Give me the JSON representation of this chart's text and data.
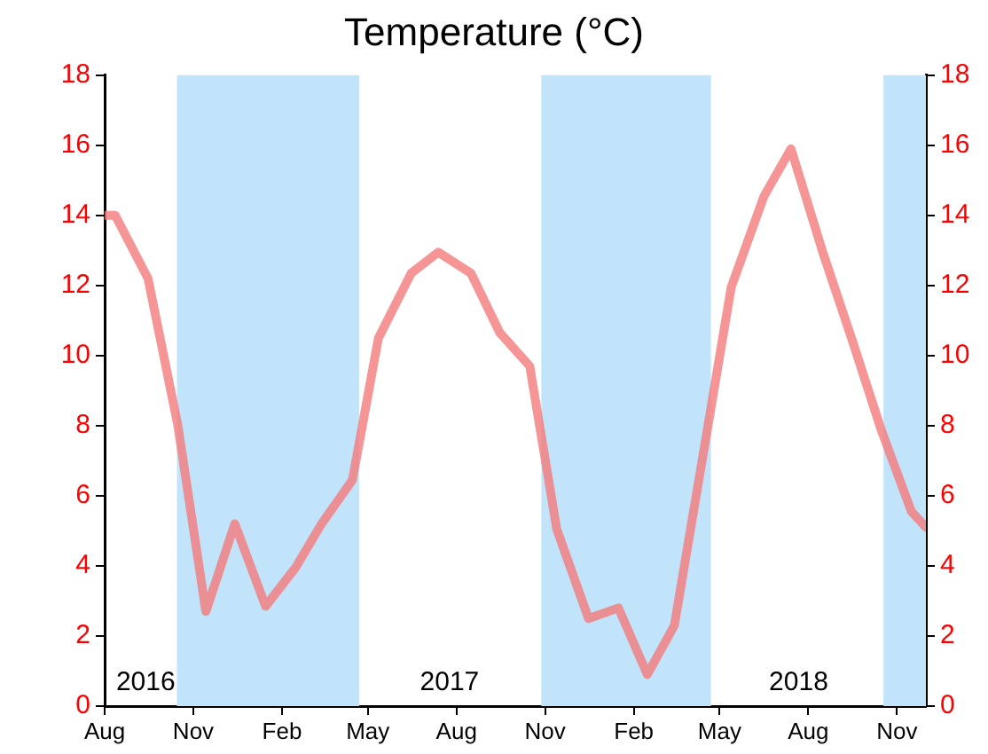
{
  "chart_data": {
    "type": "line",
    "title": "Temperature (°C)",
    "x": [
      "2016-08-01",
      "2016-08-12",
      "2016-09-15",
      "2016-10-16",
      "2016-11-14",
      "2016-12-14",
      "2017-01-15",
      "2017-02-15",
      "2017-03-14",
      "2017-04-15",
      "2017-05-12",
      "2017-06-15",
      "2017-07-13",
      "2017-08-16",
      "2017-09-15",
      "2017-10-16",
      "2017-11-13",
      "2017-12-16",
      "2018-01-16",
      "2018-02-15",
      "2018-03-15",
      "2018-04-14",
      "2018-05-13",
      "2018-06-16",
      "2018-07-14",
      "2018-08-16",
      "2018-09-16",
      "2018-10-16",
      "2018-11-16",
      "2018-12-01"
    ],
    "series": [
      {
        "color": "#f47a7a",
        "values": [
          14.0,
          14.0,
          12.2,
          8.0,
          2.7,
          5.2,
          2.85,
          3.95,
          5.2,
          6.45,
          10.5,
          12.35,
          12.95,
          12.35,
          10.65,
          9.7,
          5.05,
          2.5,
          2.8,
          0.9,
          2.3,
          7.2,
          11.95,
          14.55,
          15.9,
          12.95,
          10.4,
          7.85,
          5.55,
          5.1
        ]
      }
    ],
    "xlim": [
      "2016-08-01",
      "2018-12-01"
    ],
    "xticks": [
      {
        "value": "2016-08-01",
        "label": "Aug"
      },
      {
        "value": "2016-11-01",
        "label": "Nov"
      },
      {
        "value": "2017-02-01",
        "label": "Feb"
      },
      {
        "value": "2017-05-01",
        "label": "May"
      },
      {
        "value": "2017-08-01",
        "label": "Aug"
      },
      {
        "value": "2017-11-01",
        "label": "Nov"
      },
      {
        "value": "2018-02-01",
        "label": "Feb"
      },
      {
        "value": "2018-05-01",
        "label": "May"
      },
      {
        "value": "2018-08-01",
        "label": "Aug"
      },
      {
        "value": "2018-11-01",
        "label": "Nov"
      }
    ],
    "ylim": [
      0,
      18
    ],
    "yticks": [
      0,
      2,
      4,
      6,
      8,
      10,
      12,
      14,
      16,
      18
    ],
    "y2lim": [
      0,
      18
    ],
    "y2ticks": [
      0,
      2,
      4,
      6,
      8,
      10,
      12,
      14,
      16,
      18
    ],
    "bands": [
      {
        "axis": "x",
        "from": "2016-10-15",
        "to": "2017-04-22",
        "color": "#c2e4fb"
      },
      {
        "axis": "x",
        "from": "2017-10-28",
        "to": "2018-04-22",
        "color": "#c2e4fb"
      },
      {
        "axis": "x",
        "from": "2018-10-18",
        "to": "2018-12-01",
        "color": "#c2e4fb"
      }
    ],
    "annotations": [
      "2016",
      "2017",
      "2018"
    ],
    "grid": false,
    "legend": false,
    "marker": "none",
    "line_style": "solid"
  }
}
